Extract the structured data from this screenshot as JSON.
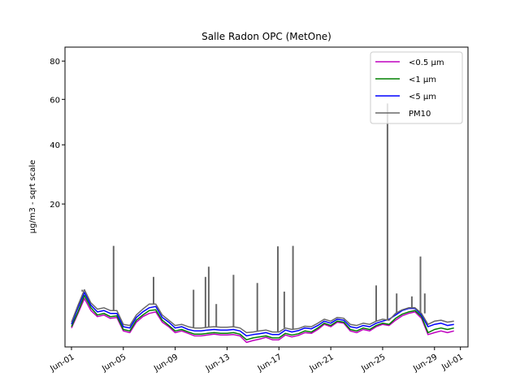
{
  "chart_data": {
    "type": "line",
    "title": "Salle Radon OPC (MetOne)",
    "xlabel": "",
    "ylabel": "µg/m3 - sqrt scale",
    "y_scale": "sqrt",
    "ylim": [
      0,
      88
    ],
    "xlim": [
      "2020-05-31T12:00",
      "2020-07-01T14:00"
    ],
    "x_ticks": [
      "Jun-01",
      "Jun-05",
      "Jun-09",
      "Jun-13",
      "Jun-17",
      "Jun-21",
      "Jun-25",
      "Jun-29",
      "Jul-01"
    ],
    "x_tick_dates": [
      "2020-06-01",
      "2020-06-05",
      "2020-06-09",
      "2020-06-13",
      "2020-06-17",
      "2020-06-21",
      "2020-06-25",
      "2020-06-29",
      "2020-07-01"
    ],
    "y_ticks": [
      20,
      40,
      60,
      80
    ],
    "grid": false,
    "legend_position": "top-right",
    "x": [
      "2020-06-01T00:00",
      "2020-06-01T12:00",
      "2020-06-02T00:00",
      "2020-06-02T12:00",
      "2020-06-03T00:00",
      "2020-06-03T12:00",
      "2020-06-04T00:00",
      "2020-06-04T12:00",
      "2020-06-05T00:00",
      "2020-06-05T12:00",
      "2020-06-06T00:00",
      "2020-06-06T12:00",
      "2020-06-07T00:00",
      "2020-06-07T12:00",
      "2020-06-08T00:00",
      "2020-06-08T12:00",
      "2020-06-09T00:00",
      "2020-06-09T12:00",
      "2020-06-10T00:00",
      "2020-06-10T12:00",
      "2020-06-11T00:00",
      "2020-06-11T12:00",
      "2020-06-12T00:00",
      "2020-06-12T12:00",
      "2020-06-13T00:00",
      "2020-06-13T12:00",
      "2020-06-14T00:00",
      "2020-06-14T12:00",
      "2020-06-15T00:00",
      "2020-06-15T12:00",
      "2020-06-16T00:00",
      "2020-06-16T12:00",
      "2020-06-17T00:00",
      "2020-06-17T12:00",
      "2020-06-18T00:00",
      "2020-06-18T12:00",
      "2020-06-19T00:00",
      "2020-06-19T12:00",
      "2020-06-20T00:00",
      "2020-06-20T12:00",
      "2020-06-21T00:00",
      "2020-06-21T12:00",
      "2020-06-22T00:00",
      "2020-06-22T12:00",
      "2020-06-23T00:00",
      "2020-06-23T12:00",
      "2020-06-24T00:00",
      "2020-06-24T12:00",
      "2020-06-25T00:00",
      "2020-06-25T12:00",
      "2020-06-26T00:00",
      "2020-06-26T12:00",
      "2020-06-27T00:00",
      "2020-06-27T12:00",
      "2020-06-28T00:00",
      "2020-06-28T12:00",
      "2020-06-29T00:00",
      "2020-06-29T12:00",
      "2020-06-30T00:00",
      "2020-06-30T12:00"
    ],
    "series": [
      {
        "name": "<0.5 µm",
        "color": "#bf00bf",
        "values": [
          0.35,
          1.1,
          2.3,
          1.3,
          0.9,
          1.0,
          0.8,
          0.85,
          0.25,
          0.2,
          0.6,
          0.9,
          1.1,
          1.2,
          0.6,
          0.4,
          0.2,
          0.25,
          0.18,
          0.12,
          0.12,
          0.14,
          0.16,
          0.14,
          0.14,
          0.15,
          0.12,
          0.02,
          0.04,
          0.06,
          0.09,
          0.05,
          0.05,
          0.14,
          0.1,
          0.13,
          0.2,
          0.18,
          0.3,
          0.5,
          0.4,
          0.6,
          0.55,
          0.25,
          0.2,
          0.3,
          0.25,
          0.4,
          0.5,
          0.45,
          0.7,
          0.95,
          1.1,
          1.2,
          0.8,
          0.15,
          0.2,
          0.25,
          0.2,
          0.25
        ]
      },
      {
        "name": "<1 µm",
        "color": "#008000",
        "values": [
          0.4,
          1.2,
          2.6,
          1.5,
          1.0,
          1.1,
          0.9,
          0.95,
          0.3,
          0.25,
          0.7,
          1.0,
          1.3,
          1.35,
          0.7,
          0.45,
          0.25,
          0.3,
          0.22,
          0.16,
          0.16,
          0.18,
          0.2,
          0.18,
          0.18,
          0.2,
          0.16,
          0.05,
          0.08,
          0.1,
          0.12,
          0.08,
          0.08,
          0.18,
          0.14,
          0.17,
          0.25,
          0.22,
          0.35,
          0.55,
          0.45,
          0.65,
          0.6,
          0.3,
          0.25,
          0.35,
          0.3,
          0.45,
          0.55,
          0.5,
          0.8,
          1.05,
          1.2,
          1.3,
          0.9,
          0.2,
          0.3,
          0.35,
          0.3,
          0.35
        ]
      },
      {
        "name": "<5 µm",
        "color": "#0000ff",
        "values": [
          0.5,
          1.5,
          2.9,
          1.7,
          1.2,
          1.3,
          1.1,
          1.1,
          0.4,
          0.35,
          0.85,
          1.2,
          1.5,
          1.6,
          0.85,
          0.6,
          0.35,
          0.4,
          0.3,
          0.25,
          0.25,
          0.28,
          0.3,
          0.28,
          0.28,
          0.3,
          0.25,
          0.12,
          0.15,
          0.17,
          0.2,
          0.15,
          0.15,
          0.28,
          0.22,
          0.26,
          0.35,
          0.32,
          0.45,
          0.65,
          0.55,
          0.75,
          0.7,
          0.4,
          0.35,
          0.45,
          0.4,
          0.55,
          0.65,
          0.75,
          1.0,
          1.3,
          1.45,
          1.45,
          1.0,
          0.4,
          0.5,
          0.55,
          0.45,
          0.5
        ]
      },
      {
        "name": "PM10",
        "color": "#696969",
        "values": [
          0.6,
          1.7,
          3.2,
          1.9,
          1.4,
          1.5,
          1.3,
          1.3,
          0.5,
          0.45,
          1.0,
          1.4,
          1.8,
          1.8,
          1.0,
          0.7,
          0.45,
          0.5,
          0.4,
          0.35,
          0.35,
          0.38,
          0.4,
          0.38,
          0.38,
          0.4,
          0.35,
          0.2,
          0.22,
          0.25,
          0.28,
          0.22,
          0.22,
          0.35,
          0.3,
          0.33,
          0.42,
          0.4,
          0.55,
          0.75,
          0.65,
          0.85,
          0.8,
          0.5,
          0.45,
          0.55,
          0.5,
          0.65,
          0.75,
          0.7,
          1.1,
          1.35,
          1.5,
          1.5,
          1.1,
          0.5,
          0.65,
          0.7,
          0.6,
          0.65
        ]
      }
    ],
    "pm10_spikes": [
      {
        "x": "2020-06-01T20:00",
        "y": 3.0
      },
      {
        "x": "2020-06-04T06:00",
        "y": 10.0
      },
      {
        "x": "2020-06-07T08:00",
        "y": 4.8
      },
      {
        "x": "2020-06-10T10:00",
        "y": 3.2
      },
      {
        "x": "2020-06-11T08:00",
        "y": 4.8
      },
      {
        "x": "2020-06-11T14:00",
        "y": 6.3
      },
      {
        "x": "2020-06-12T04:00",
        "y": 1.8
      },
      {
        "x": "2020-06-13T12:00",
        "y": 5.1
      },
      {
        "x": "2020-06-15T08:00",
        "y": 4.0
      },
      {
        "x": "2020-06-16T22:00",
        "y": 9.9
      },
      {
        "x": "2020-06-17T10:00",
        "y": 3.0
      },
      {
        "x": "2020-06-18T02:00",
        "y": 10.0
      },
      {
        "x": "2020-06-24T12:00",
        "y": 3.7
      },
      {
        "x": "2020-06-25T09:00",
        "y": 58.0
      },
      {
        "x": "2020-06-26T02:00",
        "y": 2.8
      },
      {
        "x": "2020-06-27T06:00",
        "y": 2.5
      },
      {
        "x": "2020-06-27T22:00",
        "y": 8.0
      },
      {
        "x": "2020-06-28T06:00",
        "y": 2.8
      }
    ]
  }
}
